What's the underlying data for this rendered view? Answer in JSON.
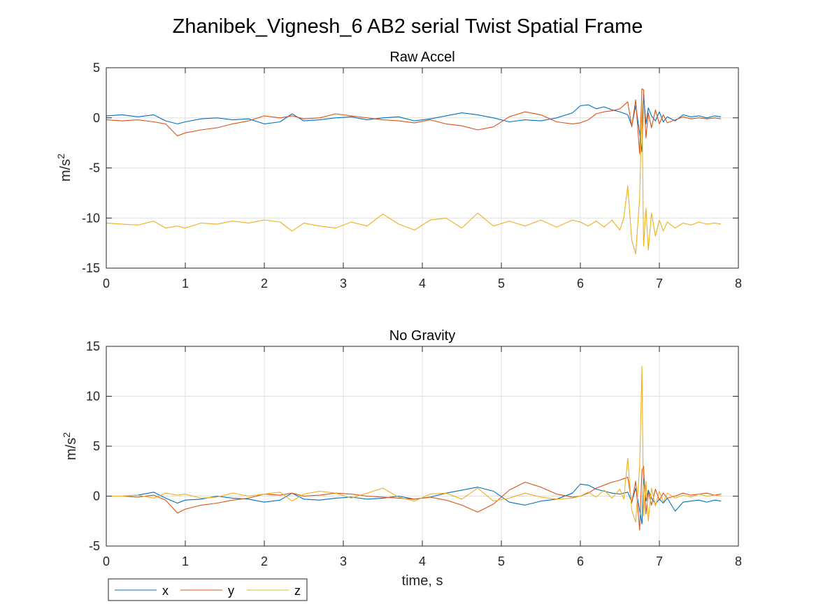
{
  "figure": {
    "title": "Zhanibek_Vignesh_6 AB2 serial Twist Spatial Frame"
  },
  "legend": {
    "placement": "bottom-left",
    "entries": [
      {
        "label": "x",
        "color": "#0072BD"
      },
      {
        "label": "y",
        "color": "#D95319"
      },
      {
        "label": "z",
        "color": "#EDB120"
      }
    ]
  },
  "chart_data": [
    {
      "type": "line",
      "title": "Raw Accel",
      "xlabel": "",
      "ylabel": "m/s²",
      "xlim": [
        0,
        8
      ],
      "ylim": [
        -15,
        5
      ],
      "xticks": [
        0,
        1,
        2,
        3,
        4,
        5,
        6,
        7,
        8
      ],
      "yticks": [
        -15,
        -10,
        -5,
        0,
        5
      ],
      "grid": true,
      "series": [
        {
          "name": "x",
          "color": "#0072BD",
          "x": [
            0,
            0.2,
            0.4,
            0.6,
            0.75,
            0.9,
            1.0,
            1.2,
            1.4,
            1.6,
            1.8,
            2.0,
            2.2,
            2.35,
            2.5,
            2.7,
            2.9,
            3.1,
            3.3,
            3.5,
            3.7,
            3.9,
            4.1,
            4.3,
            4.5,
            4.7,
            4.9,
            5.1,
            5.3,
            5.5,
            5.7,
            5.9,
            6.0,
            6.1,
            6.2,
            6.3,
            6.4,
            6.5,
            6.6,
            6.65,
            6.7,
            6.75,
            6.78,
            6.8,
            6.83,
            6.86,
            6.9,
            6.95,
            7.0,
            7.05,
            7.1,
            7.2,
            7.3,
            7.4,
            7.5,
            7.6,
            7.7,
            7.78
          ],
          "y": [
            0.2,
            0.3,
            0.1,
            0.3,
            -0.3,
            -0.6,
            -0.4,
            -0.1,
            0.0,
            -0.2,
            -0.1,
            -0.6,
            -0.4,
            0.4,
            -0.3,
            -0.2,
            0.0,
            0.1,
            -0.2,
            0.0,
            0.1,
            -0.3,
            -0.1,
            0.2,
            0.5,
            0.3,
            0.0,
            -0.4,
            -0.2,
            -0.3,
            0.0,
            0.5,
            1.2,
            1.3,
            0.9,
            1.1,
            0.8,
            0.6,
            0.3,
            -0.8,
            1.2,
            -1.5,
            -3.4,
            2.4,
            -0.6,
            1.0,
            0.2,
            -0.3,
            0.6,
            -0.4,
            0.1,
            -0.3,
            0.3,
            0.1,
            0.2,
            0.0,
            0.2,
            0.1
          ]
        },
        {
          "name": "y",
          "color": "#D95319",
          "x": [
            0,
            0.2,
            0.4,
            0.6,
            0.75,
            0.9,
            1.0,
            1.2,
            1.4,
            1.6,
            1.8,
            2.0,
            2.2,
            2.35,
            2.5,
            2.7,
            2.9,
            3.1,
            3.3,
            3.5,
            3.7,
            3.9,
            4.1,
            4.3,
            4.5,
            4.7,
            4.9,
            5.1,
            5.3,
            5.5,
            5.7,
            5.9,
            6.0,
            6.1,
            6.2,
            6.3,
            6.4,
            6.5,
            6.6,
            6.65,
            6.7,
            6.75,
            6.78,
            6.8,
            6.83,
            6.86,
            6.9,
            6.95,
            7.0,
            7.05,
            7.1,
            7.2,
            7.3,
            7.4,
            7.5,
            7.6,
            7.7,
            7.78
          ],
          "y": [
            -0.2,
            -0.3,
            -0.2,
            -0.4,
            -0.6,
            -1.8,
            -1.5,
            -1.2,
            -1.0,
            -0.6,
            -0.3,
            0.2,
            0.0,
            0.2,
            -0.1,
            0.0,
            0.4,
            0.2,
            0.0,
            -0.2,
            -0.3,
            -0.5,
            -0.2,
            -0.6,
            -0.8,
            -1.2,
            -0.9,
            0.1,
            0.6,
            0.3,
            -0.4,
            -0.6,
            -0.5,
            -0.2,
            0.4,
            0.6,
            0.7,
            0.9,
            1.6,
            -0.9,
            1.8,
            -3.6,
            2.9,
            2.8,
            -2.0,
            0.5,
            -1.0,
            0.8,
            -0.6,
            0.3,
            -0.5,
            -0.2,
            0.1,
            -0.1,
            0.0,
            -0.1,
            0.0,
            -0.1
          ]
        },
        {
          "name": "z",
          "color": "#EDB120",
          "x": [
            0,
            0.2,
            0.4,
            0.6,
            0.75,
            0.9,
            1.0,
            1.2,
            1.4,
            1.6,
            1.8,
            2.0,
            2.2,
            2.35,
            2.5,
            2.7,
            2.9,
            3.1,
            3.3,
            3.5,
            3.7,
            3.9,
            4.1,
            4.3,
            4.5,
            4.7,
            4.9,
            5.1,
            5.3,
            5.5,
            5.7,
            5.9,
            6.0,
            6.1,
            6.2,
            6.3,
            6.4,
            6.5,
            6.55,
            6.6,
            6.65,
            6.7,
            6.75,
            6.78,
            6.8,
            6.83,
            6.86,
            6.9,
            6.95,
            7.0,
            7.05,
            7.1,
            7.2,
            7.3,
            7.4,
            7.5,
            7.6,
            7.7,
            7.78
          ],
          "y": [
            -10.5,
            -10.6,
            -10.7,
            -10.3,
            -11.0,
            -10.8,
            -11.0,
            -10.5,
            -10.6,
            -10.3,
            -10.5,
            -10.2,
            -10.4,
            -11.3,
            -10.5,
            -10.8,
            -11.0,
            -10.4,
            -10.8,
            -9.6,
            -10.6,
            -11.2,
            -10.2,
            -10.0,
            -11.0,
            -9.5,
            -10.8,
            -10.3,
            -10.8,
            -10.2,
            -10.9,
            -10.2,
            -10.4,
            -10.8,
            -10.3,
            -10.9,
            -10.2,
            -11.2,
            -10.0,
            -6.8,
            -12.2,
            -13.6,
            -8.0,
            1.7,
            -12.8,
            -9.0,
            -13.2,
            -9.5,
            -11.8,
            -10.2,
            -11.3,
            -10.4,
            -11.0,
            -10.5,
            -10.7,
            -10.4,
            -10.6,
            -10.5,
            -10.6
          ]
        }
      ]
    },
    {
      "type": "line",
      "title": "No Gravity",
      "xlabel": "time, s",
      "ylabel": "m/s²",
      "xlim": [
        0,
        8
      ],
      "ylim": [
        -5,
        15
      ],
      "xticks": [
        0,
        1,
        2,
        3,
        4,
        5,
        6,
        7,
        8
      ],
      "yticks": [
        -5,
        0,
        5,
        10,
        15
      ],
      "grid": true,
      "series": [
        {
          "name": "x",
          "color": "#0072BD",
          "x": [
            0,
            0.2,
            0.4,
            0.6,
            0.75,
            0.9,
            1.0,
            1.2,
            1.4,
            1.6,
            1.8,
            2.0,
            2.2,
            2.35,
            2.5,
            2.7,
            2.9,
            3.1,
            3.3,
            3.5,
            3.7,
            3.9,
            4.1,
            4.3,
            4.5,
            4.7,
            4.9,
            5.1,
            5.3,
            5.5,
            5.7,
            5.9,
            6.0,
            6.1,
            6.2,
            6.3,
            6.4,
            6.5,
            6.6,
            6.65,
            6.7,
            6.75,
            6.78,
            6.8,
            6.83,
            6.86,
            6.9,
            6.95,
            7.0,
            7.05,
            7.1,
            7.2,
            7.3,
            7.4,
            7.5,
            7.6,
            7.7,
            7.78
          ],
          "y": [
            0.0,
            0.0,
            0.1,
            0.4,
            -0.2,
            -0.7,
            -0.4,
            -0.3,
            0.0,
            -0.2,
            -0.3,
            -0.6,
            -0.4,
            0.3,
            -0.3,
            -0.4,
            -0.2,
            -0.1,
            -0.3,
            -0.2,
            0.0,
            -0.3,
            -0.1,
            0.3,
            0.6,
            0.9,
            0.5,
            -0.6,
            -0.9,
            -0.5,
            -0.3,
            0.3,
            1.2,
            1.1,
            0.7,
            0.5,
            0.3,
            0.2,
            0.4,
            -0.6,
            0.8,
            -1.4,
            -2.8,
            1.8,
            -0.5,
            0.6,
            -0.2,
            -0.8,
            -0.3,
            -0.7,
            -0.2,
            -1.5,
            -0.6,
            -0.5,
            -0.4,
            -0.6,
            -0.4,
            -0.5
          ]
        },
        {
          "name": "y",
          "color": "#D95319",
          "x": [
            0,
            0.2,
            0.4,
            0.6,
            0.75,
            0.9,
            1.0,
            1.2,
            1.4,
            1.6,
            1.8,
            2.0,
            2.2,
            2.35,
            2.5,
            2.7,
            2.9,
            3.1,
            3.3,
            3.5,
            3.7,
            3.9,
            4.1,
            4.3,
            4.5,
            4.7,
            4.9,
            5.1,
            5.3,
            5.5,
            5.7,
            5.9,
            6.0,
            6.1,
            6.2,
            6.3,
            6.4,
            6.5,
            6.6,
            6.65,
            6.7,
            6.75,
            6.78,
            6.8,
            6.83,
            6.86,
            6.9,
            6.95,
            7.0,
            7.05,
            7.1,
            7.2,
            7.3,
            7.4,
            7.5,
            7.6,
            7.7,
            7.78
          ],
          "y": [
            0.0,
            0.0,
            -0.1,
            0.1,
            -0.4,
            -1.7,
            -1.3,
            -0.9,
            -0.7,
            -0.4,
            -0.2,
            0.2,
            0.1,
            0.3,
            0.0,
            0.1,
            0.3,
            0.2,
            0.0,
            -0.1,
            -0.2,
            -0.3,
            -0.1,
            -0.4,
            -0.9,
            -1.6,
            -0.8,
            0.6,
            1.4,
            0.9,
            0.2,
            -0.1,
            0.0,
            0.3,
            0.8,
            1.1,
            1.4,
            1.6,
            1.9,
            -0.7,
            1.5,
            -3.4,
            2.6,
            3.0,
            -1.8,
            0.4,
            -0.9,
            0.7,
            -0.4,
            0.3,
            -0.2,
            0.0,
            0.3,
            0.1,
            0.2,
            0.3,
            0.1,
            0.2
          ]
        },
        {
          "name": "z",
          "color": "#EDB120",
          "x": [
            0,
            0.2,
            0.4,
            0.6,
            0.75,
            0.9,
            1.0,
            1.2,
            1.4,
            1.6,
            1.8,
            2.0,
            2.2,
            2.35,
            2.5,
            2.7,
            2.9,
            3.1,
            3.3,
            3.5,
            3.7,
            3.9,
            4.1,
            4.3,
            4.5,
            4.7,
            4.9,
            5.1,
            5.3,
            5.5,
            5.7,
            5.9,
            6.0,
            6.1,
            6.2,
            6.3,
            6.4,
            6.5,
            6.55,
            6.6,
            6.65,
            6.7,
            6.75,
            6.78,
            6.8,
            6.83,
            6.86,
            6.9,
            6.95,
            7.0,
            7.05,
            7.1,
            7.2,
            7.3,
            7.4,
            7.5,
            7.6,
            7.7,
            7.78
          ],
          "y": [
            0.0,
            0.0,
            0.1,
            -0.2,
            0.3,
            0.1,
            0.2,
            -0.2,
            -0.1,
            0.3,
            0.0,
            0.2,
            0.4,
            -0.5,
            0.2,
            0.5,
            0.3,
            -0.2,
            0.3,
            0.8,
            -0.1,
            -0.5,
            0.2,
            0.3,
            -0.3,
            0.8,
            -0.5,
            -0.2,
            0.3,
            -0.1,
            -0.3,
            -0.2,
            0.0,
            0.4,
            -0.1,
            0.6,
            -0.2,
            0.7,
            -0.3,
            3.8,
            -1.4,
            -2.6,
            3.0,
            13.0,
            -2.0,
            1.5,
            -2.5,
            0.8,
            -1.0,
            0.5,
            -0.6,
            0.3,
            -0.2,
            0.1,
            -0.1,
            0.2,
            0.0,
            0.1,
            0.0
          ]
        }
      ]
    }
  ]
}
